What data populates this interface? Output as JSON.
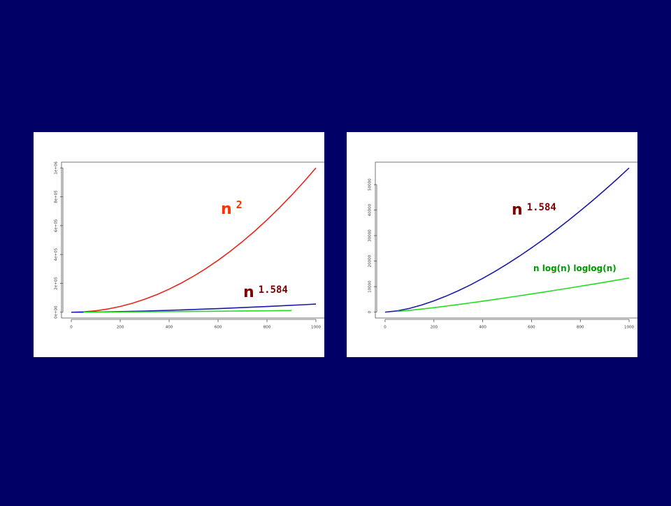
{
  "chart_data": [
    {
      "type": "line",
      "x": [
        0,
        50,
        100,
        150,
        200,
        250,
        300,
        350,
        400,
        450,
        500,
        550,
        600,
        650,
        700,
        750,
        800,
        850,
        900,
        950,
        1000
      ],
      "xlim": [
        -40,
        1040
      ],
      "xticks": [
        0,
        200,
        400,
        600,
        800,
        1000
      ],
      "ylim": [
        -40000,
        1040000
      ],
      "yticks": [
        {
          "value": 0,
          "label": "0e+00"
        },
        {
          "value": 200000,
          "label": "2e+05"
        },
        {
          "value": 400000,
          "label": "4e+05"
        },
        {
          "value": 600000,
          "label": "6e+05"
        },
        {
          "value": 800000,
          "label": "8e+05"
        },
        {
          "value": 1000000,
          "label": "1e+06"
        }
      ],
      "series": [
        {
          "color": "#e8261c",
          "values": [
            0,
            2500,
            10000,
            22500,
            40000,
            62500,
            90000,
            122500,
            160000,
            202500,
            250000,
            302500,
            360000,
            422500,
            490000,
            562500,
            640000,
            722500,
            810000,
            902500,
            1000000
          ]
        },
        {
          "color": "#1a1aa8",
          "values": [
            0,
            491,
            1473,
            2798,
            4415,
            6284,
            8390,
            10700,
            13220,
            15940,
            18850,
            21920,
            25180,
            28580,
            32140,
            35840,
            39720,
            43700,
            47840,
            52090,
            56520
          ]
        },
        {
          "color": "#22dd22",
          "values": [
            null,
            267,
            703,
            1212,
            1766,
            2359,
            2979,
            3625,
            4290,
            4976,
            5677,
            6393,
            7124,
            7864,
            8621,
            9384,
            10161,
            10945,
            11735,
            null,
            null
          ]
        }
      ],
      "annotations": [
        {
          "text": "n",
          "superscript": "2",
          "color": "#ff3300"
        },
        {
          "text": "n",
          "superscript": "1.584",
          "color": "#800000"
        }
      ]
    },
    {
      "type": "line",
      "x": [
        0,
        50,
        100,
        150,
        200,
        250,
        300,
        350,
        400,
        450,
        500,
        550,
        600,
        650,
        700,
        750,
        800,
        850,
        900,
        950,
        1000
      ],
      "xlim": [
        -40,
        1040
      ],
      "xticks": [
        0,
        200,
        400,
        600,
        800,
        1000
      ],
      "ylim": [
        -2300,
        58800
      ],
      "yticks": [
        0,
        10000,
        20000,
        30000,
        40000,
        50000
      ],
      "series": [
        {
          "color": "#1a1aa8",
          "values": [
            0,
            491,
            1473,
            2798,
            4415,
            6284,
            8390,
            10700,
            13220,
            15940,
            18850,
            21920,
            25180,
            28580,
            32140,
            35840,
            39720,
            43700,
            47840,
            52090,
            56520
          ]
        },
        {
          "color": "#22dd22",
          "values": [
            null,
            267,
            703,
            1212,
            1766,
            2359,
            2979,
            3625,
            4290,
            4976,
            5677,
            6393,
            7124,
            7864,
            8621,
            9384,
            10161,
            10945,
            11735,
            12538,
            13353
          ]
        }
      ],
      "annotations": [
        {
          "text": "n",
          "superscript": "1.584",
          "color": "#800000"
        },
        {
          "text": "n log(n)  loglog(n)",
          "color": "#009900"
        }
      ]
    }
  ]
}
